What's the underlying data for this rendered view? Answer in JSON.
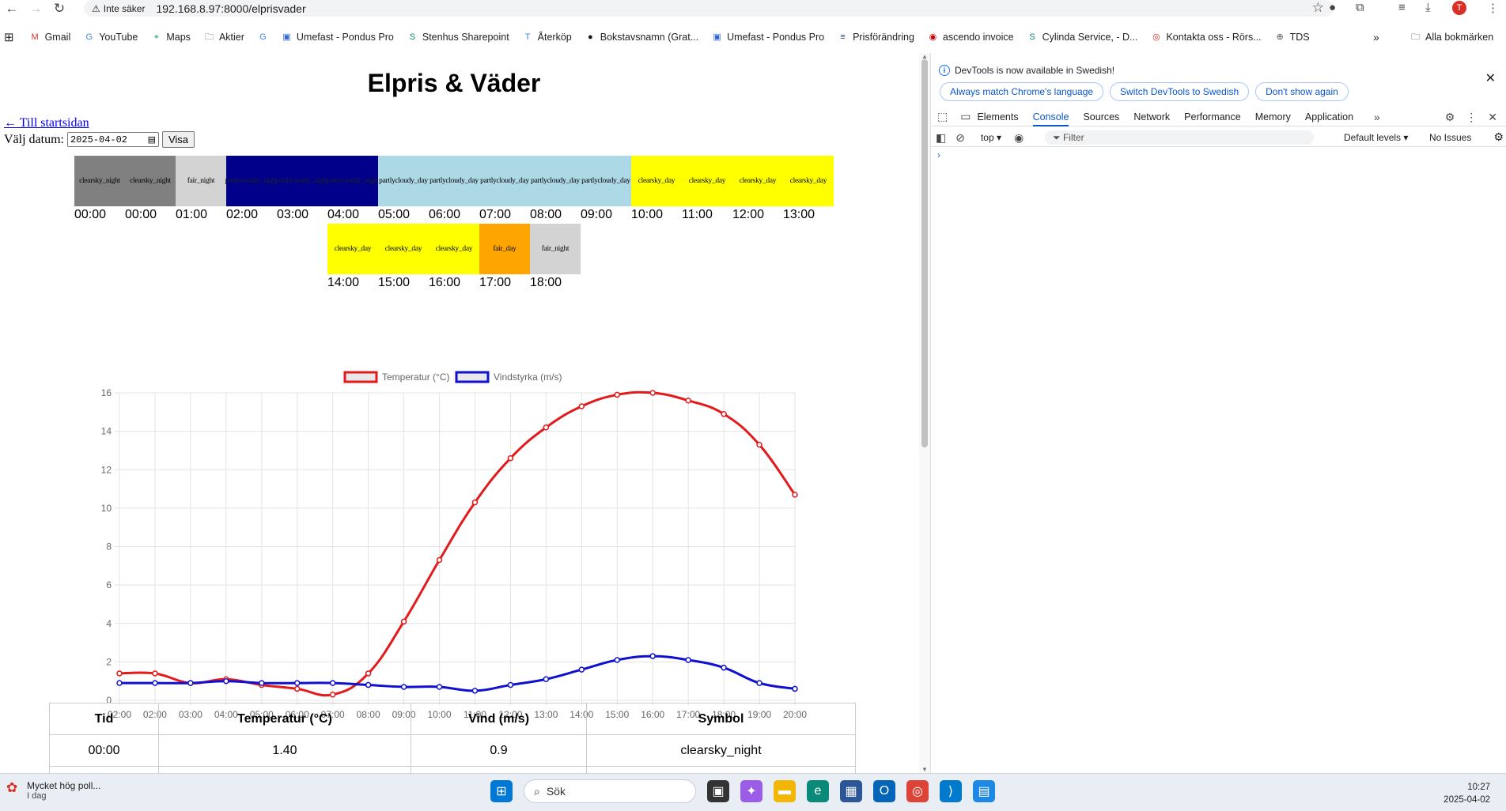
{
  "browser": {
    "security_label": "Inte säker",
    "url": "192.168.8.97:8000/elprisvader",
    "avatar_letter": "T",
    "bookmarks": [
      "Gmail",
      "YouTube",
      "Maps",
      "Aktier",
      "",
      "Umefast - Pondus Pro",
      "Stenhus Sharepoint",
      "Återköp",
      "Bokstavsnamn (Grat...",
      "Umefast - Pondus Pro",
      "Prisförändring",
      "ascendo invoice",
      "Cylinda Service, - D...",
      "Kontakta oss - Rörs...",
      "TDS"
    ],
    "all_bookmarks": "Alla bokmärken"
  },
  "page": {
    "title": "Elpris & Väder",
    "back_link": "← Till startsidan",
    "date_label": "Välj datum:",
    "date_value": "2025-04-02",
    "show_button": "Visa",
    "weather_row1": [
      {
        "symbol": "clearsky_night",
        "color": "#808080",
        "hour": "00:00"
      },
      {
        "symbol": "clearsky_night",
        "color": "#808080",
        "hour": "00:00"
      },
      {
        "symbol": "fair_night",
        "color": "#d3d3d3",
        "hour": "01:00"
      },
      {
        "symbol": "partlycloudy_night",
        "color": "#00008b",
        "hour": "02:00"
      },
      {
        "symbol": "partlycloudy_night",
        "color": "#00008b",
        "hour": "03:00"
      },
      {
        "symbol": "partlycloudy_night",
        "color": "#00008b",
        "hour": "04:00"
      },
      {
        "symbol": "partlycloudy_day",
        "color": "#add8e6",
        "hour": "05:00"
      },
      {
        "symbol": "partlycloudy_day",
        "color": "#add8e6",
        "hour": "06:00"
      },
      {
        "symbol": "partlycloudy_day",
        "color": "#add8e6",
        "hour": "07:00"
      },
      {
        "symbol": "partlycloudy_day",
        "color": "#add8e6",
        "hour": "08:00"
      },
      {
        "symbol": "partlycloudy_day",
        "color": "#add8e6",
        "hour": "09:00"
      },
      {
        "symbol": "clearsky_day",
        "color": "#ffff00",
        "hour": "10:00"
      },
      {
        "symbol": "clearsky_day",
        "color": "#ffff00",
        "hour": "11:00"
      },
      {
        "symbol": "clearsky_day",
        "color": "#ffff00",
        "hour": "12:00"
      },
      {
        "symbol": "clearsky_day",
        "color": "#ffff00",
        "hour": "13:00"
      }
    ],
    "weather_row2": [
      {
        "symbol": "clearsky_day",
        "color": "#ffff00",
        "hour": "14:00"
      },
      {
        "symbol": "clearsky_day",
        "color": "#ffff00",
        "hour": "15:00"
      },
      {
        "symbol": "clearsky_day",
        "color": "#ffff00",
        "hour": "16:00"
      },
      {
        "symbol": "fair_day",
        "color": "#ffa500",
        "hour": "17:00"
      },
      {
        "symbol": "fair_night",
        "color": "#d3d3d3",
        "hour": "18:00"
      }
    ],
    "table": {
      "headers": [
        "Tid",
        "Temperatur (°C)",
        "Vind (m/s)",
        "Symbol"
      ],
      "rows": [
        [
          "00:00",
          "1.40",
          "0.9",
          "clearsky_night"
        ]
      ]
    }
  },
  "chart_data": {
    "type": "line",
    "x": [
      "02:00",
      "02:00",
      "03:00",
      "04:00",
      "05:00",
      "06:00",
      "07:00",
      "08:00",
      "09:00",
      "10:00",
      "11:00",
      "12:00",
      "13:00",
      "14:00",
      "15:00",
      "16:00",
      "17:00",
      "18:00",
      "19:00",
      "20:00"
    ],
    "series": [
      {
        "name": "Temperatur (°C)",
        "color": "#e31a1c",
        "values": [
          1.4,
          1.4,
          0.9,
          1.1,
          0.8,
          0.6,
          0.3,
          1.4,
          4.1,
          7.3,
          10.3,
          12.6,
          14.2,
          15.3,
          15.9,
          16.0,
          15.6,
          14.9,
          13.3,
          10.7
        ]
      },
      {
        "name": "Vindstyrka (m/s)",
        "color": "#1010d0",
        "values": [
          0.9,
          0.9,
          0.9,
          1.0,
          0.9,
          0.9,
          0.9,
          0.8,
          0.7,
          0.7,
          0.5,
          0.8,
          1.1,
          1.6,
          2.1,
          2.3,
          2.1,
          1.7,
          0.9,
          0.6
        ]
      }
    ],
    "ylim": [
      0,
      16
    ],
    "yticks": [
      "0",
      "2",
      "4",
      "6",
      "8",
      "10",
      "12",
      "14",
      "16"
    ],
    "grid": true,
    "legend_position": "top"
  },
  "devtools": {
    "banner": "DevTools is now available in Swedish!",
    "banner_buttons": [
      "Always match Chrome's language",
      "Switch DevTools to Swedish",
      "Don't show again"
    ],
    "tabs": [
      "Elements",
      "Console",
      "Sources",
      "Network",
      "Performance",
      "Memory",
      "Application"
    ],
    "active_tab": "Console",
    "context": "top",
    "filter_placeholder": "Filter",
    "levels": "Default levels",
    "issues": "No Issues"
  },
  "taskbar": {
    "weather_title": "Mycket hög poll...",
    "weather_sub": "I dag",
    "search": "Sök",
    "time": "10:27",
    "date": "2025-04-02"
  }
}
